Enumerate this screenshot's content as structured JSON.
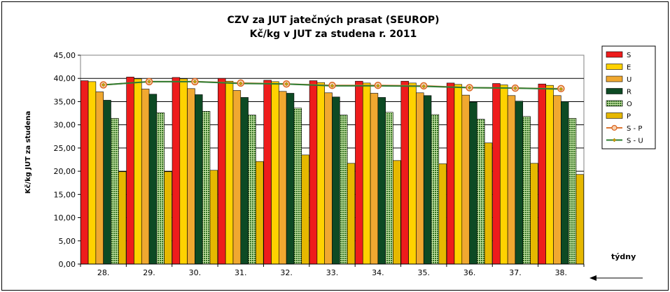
{
  "chart_data": {
    "type": "bar",
    "title_line1": "CZV za JUT jatečných prasat (SEUROP)",
    "title_line2": "Kč/kg v JUT za studena r. 2011",
    "ylabel": "Kč/kg  JUT za studena",
    "xlabel": "týdny",
    "ylim": [
      0,
      45
    ],
    "yticks": [
      "0,00",
      "5,00",
      "10,00",
      "15,00",
      "20,00",
      "25,00",
      "30,00",
      "35,00",
      "40,00",
      "45,00"
    ],
    "categories": [
      "28.",
      "29.",
      "30.",
      "31.",
      "32.",
      "33.",
      "34.",
      "35.",
      "36.",
      "37.",
      "38."
    ],
    "legend_position": "right",
    "series": [
      {
        "name": "S",
        "kind": "bar",
        "color": "#ee1c1c",
        "pattern": "solid",
        "values": [
          39.5,
          40.3,
          40.2,
          40.0,
          39.6,
          39.5,
          39.4,
          39.4,
          39.0,
          38.9,
          38.8
        ]
      },
      {
        "name": "E",
        "kind": "bar",
        "color": "#ffd200",
        "pattern": "solid",
        "values": [
          39.3,
          39.9,
          39.9,
          39.4,
          39.3,
          39.1,
          39.0,
          39.0,
          38.7,
          38.6,
          38.5
        ]
      },
      {
        "name": "U",
        "kind": "bar",
        "color": "#f0a830",
        "pattern": "solid",
        "values": [
          37.1,
          37.7,
          37.8,
          37.4,
          37.2,
          36.9,
          36.8,
          36.9,
          36.4,
          36.3,
          36.3
        ]
      },
      {
        "name": "R",
        "kind": "bar",
        "color": "#0d4a24",
        "pattern": "solid",
        "values": [
          35.3,
          36.6,
          36.5,
          35.9,
          36.8,
          36.0,
          35.9,
          36.3,
          34.9,
          35.1,
          35.0
        ]
      },
      {
        "name": "O",
        "kind": "bar",
        "color": "#2f6f1f",
        "pattern": "dotted",
        "values": [
          31.4,
          32.6,
          32.9,
          32.1,
          33.6,
          32.1,
          32.7,
          32.2,
          31.2,
          31.8,
          31.4
        ]
      },
      {
        "name": "P",
        "kind": "bar",
        "color": "#e6b800",
        "pattern": "solid",
        "values": [
          19.9,
          19.9,
          20.2,
          22.1,
          23.5,
          21.7,
          22.3,
          21.6,
          26.1,
          21.7,
          19.3
        ]
      },
      {
        "name": "S - P",
        "kind": "line",
        "color": "#dd7733",
        "marker": "circle",
        "values": [
          38.6,
          39.3,
          39.3,
          39.0,
          38.8,
          38.5,
          38.5,
          38.4,
          38.0,
          37.9,
          37.8
        ]
      },
      {
        "name": "S - U",
        "kind": "line",
        "color": "#2e7d32",
        "marker": "diamond",
        "values": [
          38.6,
          39.3,
          39.3,
          38.9,
          38.8,
          38.4,
          38.4,
          38.3,
          38.0,
          37.9,
          37.7
        ]
      }
    ]
  }
}
